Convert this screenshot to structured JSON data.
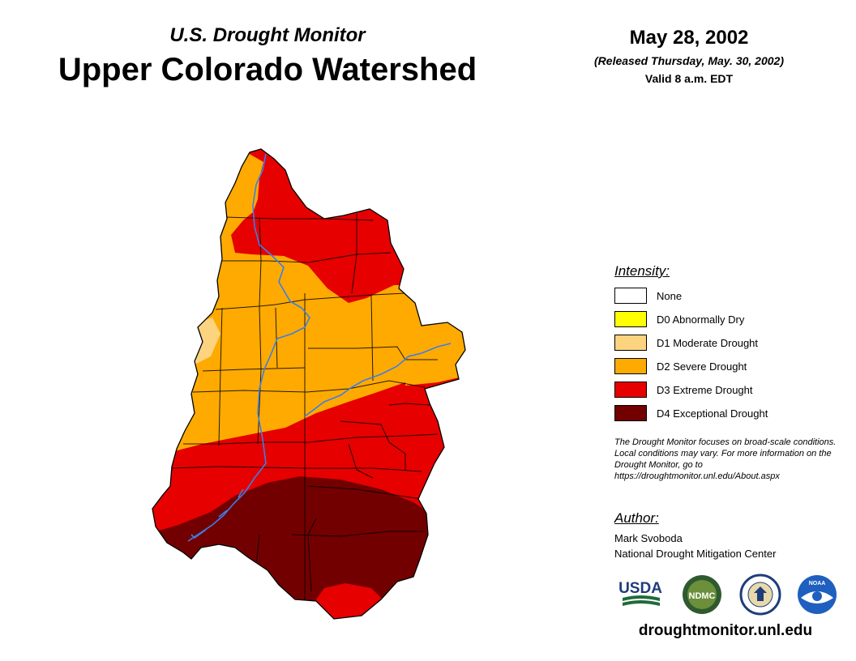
{
  "header": {
    "subtitle": "U.S. Drought Monitor",
    "title": "Upper Colorado Watershed",
    "date": "May 28, 2002",
    "released": "(Released Thursday, May. 30, 2002)",
    "valid": "Valid 8 a.m. EDT"
  },
  "legend": {
    "heading": "Intensity:",
    "items": [
      {
        "label": "None",
        "color": "#ffffff"
      },
      {
        "label": "D0 Abnormally Dry",
        "color": "#ffff00"
      },
      {
        "label": "D1 Moderate Drought",
        "color": "#fcd37f"
      },
      {
        "label": "D2 Severe Drought",
        "color": "#ffaa00"
      },
      {
        "label": "D3 Extreme Drought",
        "color": "#e60000"
      },
      {
        "label": "D4 Exceptional Drought",
        "color": "#730000"
      }
    ]
  },
  "note": "The Drought Monitor focuses on broad-scale conditions. Local conditions may vary. For more information on the Drought Monitor, go to https://droughtmonitor.unl.edu/About.aspx",
  "author": {
    "heading": "Author:",
    "name": "Mark Svoboda",
    "organization": "National Drought Mitigation Center"
  },
  "logos": {
    "usda": "USDA",
    "ndmc": "NDMC",
    "noaa": "NOAA"
  },
  "website": "droughtmonitor.unl.edu",
  "colors": {
    "river": "#3a7fe8",
    "boundary": "#000000"
  }
}
